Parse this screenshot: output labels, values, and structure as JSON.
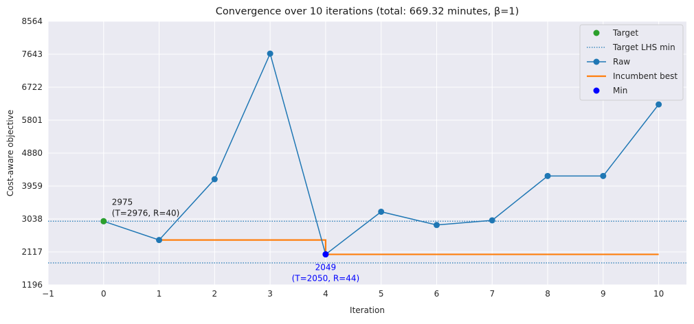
{
  "chart_data": {
    "type": "line",
    "title": "Convergence over 10 iterations (total: 669.32 minutes, β=1)",
    "xlabel": "Iteration",
    "ylabel": "Cost-aware objective",
    "xlim": [
      -1,
      10.5
    ],
    "ylim": [
      1196,
      8564
    ],
    "xticks": [
      -1,
      0,
      1,
      2,
      3,
      4,
      5,
      6,
      7,
      8,
      9,
      10
    ],
    "xtick_labels": [
      "−1",
      "0",
      "1",
      "2",
      "3",
      "4",
      "5",
      "6",
      "7",
      "8",
      "9",
      "10"
    ],
    "yticks": [
      1196,
      2117,
      3038,
      3959,
      4880,
      5801,
      6722,
      7643,
      8564
    ],
    "ytick_labels": [
      "1196",
      "2117",
      "3038",
      "3959",
      "4880",
      "5801",
      "6722",
      "7643",
      "8564"
    ],
    "grid": true,
    "legend_position": "top-right",
    "colors": {
      "raw": "#1f77b4",
      "incumbent": "#ff7f0e",
      "target": "#2ca02c",
      "target_lhs": "#1f77b4",
      "min": "#0000ff",
      "plot_bg": "#eaeaf2",
      "grid": "#ffffff"
    },
    "series": [
      {
        "name": "Raw",
        "x": [
          0,
          1,
          2,
          3,
          4,
          5,
          6,
          7,
          8,
          9,
          10
        ],
        "y": [
          2975,
          2450,
          4150,
          7660,
          2049,
          3240,
          2870,
          3000,
          4240,
          4240,
          6240
        ]
      },
      {
        "name": "Incumbent best",
        "step": "post",
        "x": [
          1,
          4,
          10
        ],
        "y": [
          2450,
          2049,
          2049
        ]
      }
    ],
    "target_lines": [
      {
        "name": "Target LHS min",
        "y": 2975
      },
      {
        "name": "",
        "y": 1810
      }
    ],
    "target_point": {
      "name": "Target",
      "x": 0,
      "y": 2975
    },
    "min_point": {
      "name": "Min",
      "x": 4,
      "y": 2049
    },
    "annotations": [
      {
        "line1": "2975",
        "line2": "(T=2976, R=40)",
        "x": 0,
        "y": 2975,
        "color": "#1a1a1a"
      },
      {
        "line1": "2049",
        "line2": "(T=2050, R=44)",
        "x": 4,
        "y": 2049,
        "color": "#0000ff"
      }
    ],
    "legend": [
      "Target",
      "Target LHS min",
      "Raw",
      "Incumbent best",
      "Min"
    ]
  }
}
